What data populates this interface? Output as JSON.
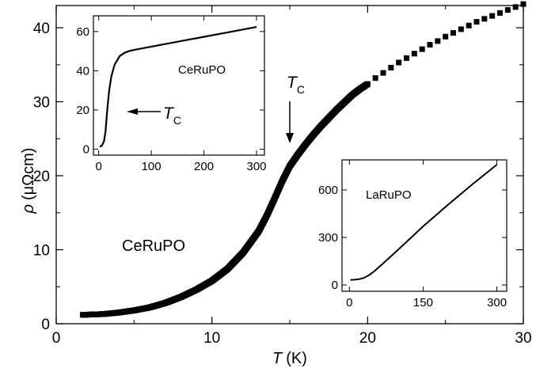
{
  "chart_data": [
    {
      "type": "scatter",
      "role": "main",
      "xlabel_symbol": "T",
      "xlabel_unit": "(K)",
      "ylabel_symbol": "ρ",
      "ylabel_unit": "(μΩcm)",
      "xlim": [
        0,
        30
      ],
      "ylim": [
        0,
        43
      ],
      "x_ticks": [
        "0",
        "10",
        "20",
        "30"
      ],
      "y_ticks": [
        "0",
        "10",
        "20",
        "30",
        "40"
      ],
      "x_tick_values": [
        0,
        10,
        20,
        30
      ],
      "y_tick_values": [
        0,
        10,
        20,
        30,
        40
      ],
      "annotations": {
        "sample": "CeRuPO",
        "tc_symbol": "T",
        "tc_sub": "C",
        "tc_x": 15.0
      },
      "series": [
        {
          "marker": "square",
          "x": [
            1.7,
            3,
            4,
            5,
            6,
            7,
            8,
            9,
            10,
            11,
            12,
            13,
            13.5,
            14,
            14.5,
            15,
            15.5,
            16,
            16.5,
            17,
            17.5,
            18,
            18.5,
            19,
            19.5,
            20,
            20.5,
            21,
            21.5,
            22,
            22.5,
            23,
            23.5,
            24,
            24.5,
            25,
            25.5,
            26,
            26.5,
            27,
            27.5,
            28,
            28.5,
            29,
            29.5,
            30
          ],
          "y": [
            1.2,
            1.3,
            1.5,
            1.8,
            2.2,
            2.8,
            3.6,
            4.6,
            5.8,
            7.4,
            9.6,
            12.5,
            14.5,
            16.8,
            19.2,
            21.3,
            22.8,
            24.2,
            25.5,
            26.7,
            27.8,
            28.9,
            29.9,
            30.9,
            31.7,
            32.4,
            33.2,
            33.9,
            34.6,
            35.3,
            35.9,
            36.5,
            37.1,
            37.7,
            38.2,
            38.8,
            39.3,
            39.8,
            40.3,
            40.8,
            41.2,
            41.6,
            42.0,
            42.4,
            42.8,
            43.2
          ]
        }
      ]
    },
    {
      "type": "line",
      "role": "inset",
      "label": "CeRuPO",
      "tc_symbol": "T",
      "tc_sub": "C",
      "xlim": [
        -10,
        315
      ],
      "ylim": [
        -3,
        68
      ],
      "x_ticks": [
        "0",
        "100",
        "200",
        "300"
      ],
      "y_ticks": [
        "0",
        "20",
        "40",
        "60"
      ],
      "x_tick_values": [
        0,
        100,
        200,
        300
      ],
      "y_tick_values": [
        0,
        20,
        40,
        60
      ],
      "series": [
        {
          "x": [
            2,
            6,
            10,
            13,
            15,
            17,
            20,
            24,
            30,
            40,
            50,
            60,
            80,
            100,
            150,
            200,
            250,
            300
          ],
          "y": [
            1.2,
            1.8,
            4.0,
            9.0,
            16.0,
            22.0,
            30.0,
            37.0,
            43.0,
            47.5,
            49.3,
            50.2,
            51.3,
            52.3,
            54.8,
            57.3,
            59.8,
            62.3
          ]
        }
      ]
    },
    {
      "type": "line",
      "role": "inset",
      "label": "LaRuPO",
      "xlim": [
        -15,
        320
      ],
      "ylim": [
        -40,
        790
      ],
      "x_ticks": [
        "0",
        "150",
        "300"
      ],
      "y_ticks": [
        "0",
        "300",
        "600"
      ],
      "x_tick_values": [
        0,
        150,
        300
      ],
      "y_tick_values": [
        0,
        300,
        600
      ],
      "series": [
        {
          "x": [
            2,
            10,
            20,
            30,
            40,
            50,
            70,
            100,
            150,
            200,
            250,
            300
          ],
          "y": [
            32,
            33,
            36,
            45,
            62,
            85,
            140,
            225,
            370,
            505,
            635,
            760
          ]
        }
      ]
    }
  ]
}
